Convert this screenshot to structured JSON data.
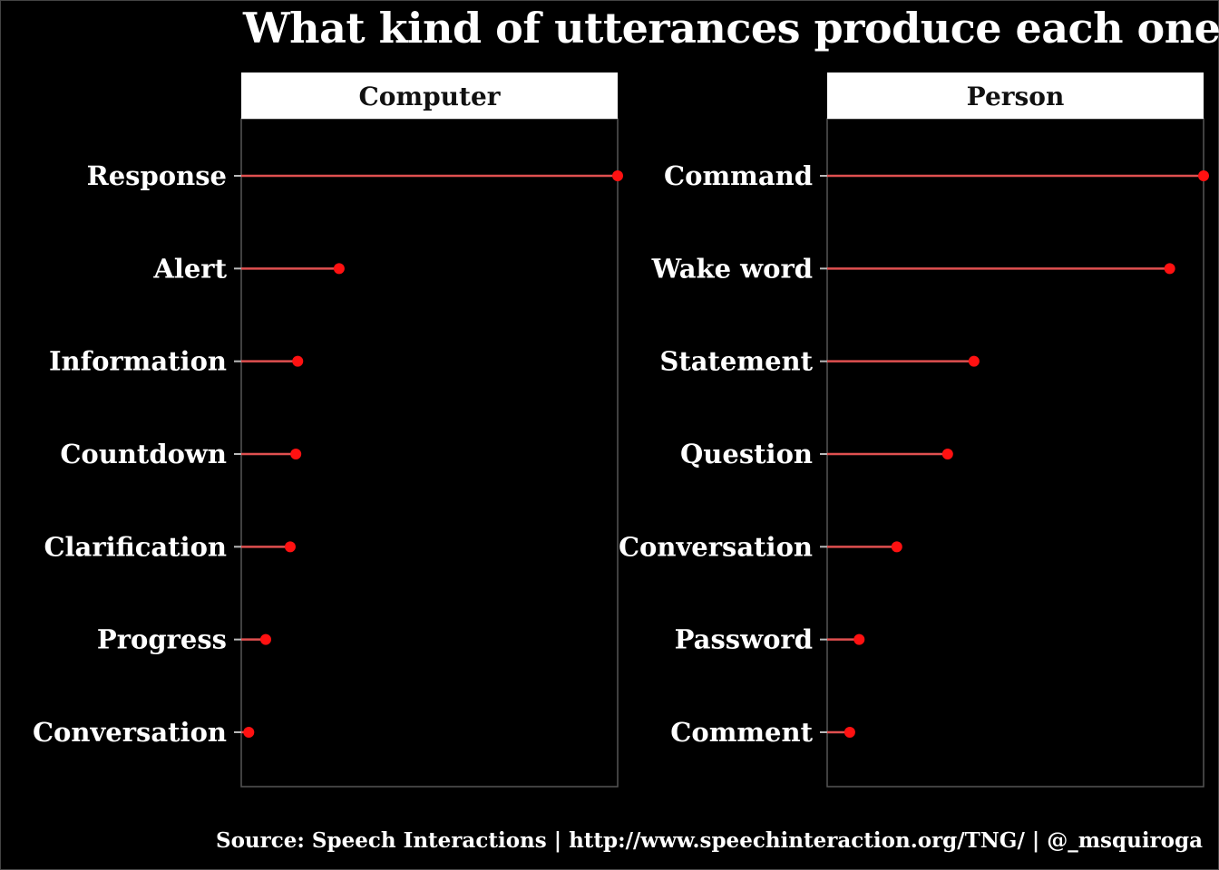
{
  "title": "What kind of utterances produce each one?",
  "caption": "Source: Speech Interactions | http://www.speechinteraction.org/TNG/ | @_msquiroga",
  "colors": {
    "background": "#000000",
    "segment": "#e05050",
    "point": "#ff1111",
    "strip": "#ffffff",
    "panel_border": "#555555"
  },
  "chart_data": [
    {
      "type": "lollipop",
      "panel": "Computer",
      "categories": [
        "Response",
        "Alert",
        "Information",
        "Countdown",
        "Clarification",
        "Progress",
        "Conversation"
      ],
      "values": [
        100,
        26,
        15,
        14.5,
        13,
        6.5,
        2
      ],
      "xlim": [
        0,
        100
      ]
    },
    {
      "type": "lollipop",
      "panel": "Person",
      "categories": [
        "Command",
        "Wake word",
        "Statement",
        "Question",
        "Conversation",
        "Password",
        "Comment"
      ],
      "values": [
        100,
        91,
        39,
        32,
        18.5,
        8.5,
        6
      ],
      "xlim": [
        0,
        100
      ]
    }
  ]
}
